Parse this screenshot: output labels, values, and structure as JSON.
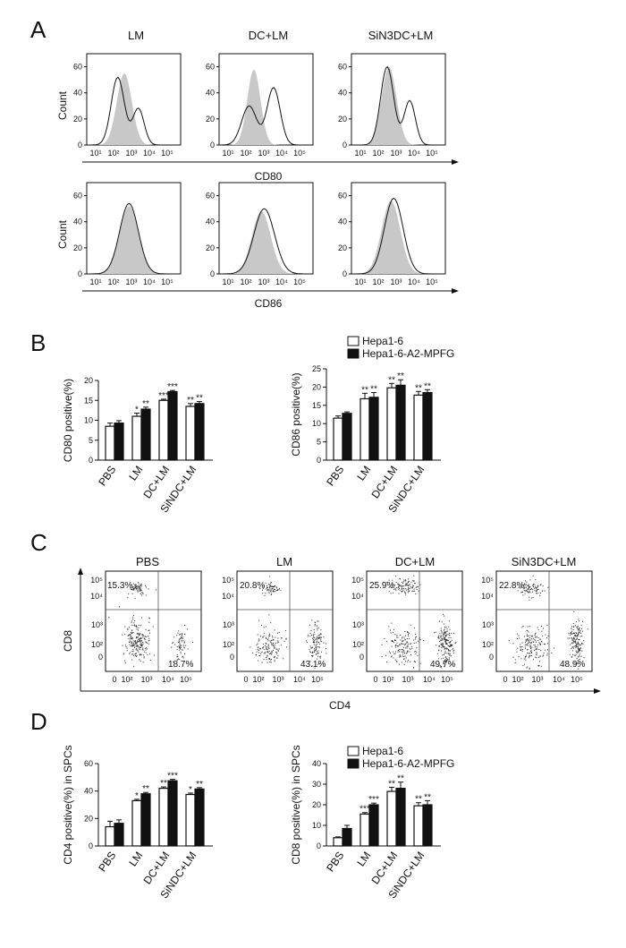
{
  "panels": {
    "A": {
      "letter": "A",
      "conditions": [
        "LM",
        "DC+LM",
        "SiN3DC+LM"
      ],
      "count_label": "Count",
      "y_ticks": [
        "0",
        "20",
        "40",
        "60"
      ],
      "x_ticks": [
        "10¹",
        "10²",
        "10³",
        "10⁴",
        "10⁵"
      ],
      "rows": [
        {
          "marker": "CD80"
        },
        {
          "marker": "CD86"
        }
      ]
    },
    "B": {
      "letter": "B",
      "legend": [
        "Hepa1-6",
        "Hepa1-6-A2-MPFG"
      ],
      "categories": [
        "PBS",
        "LM",
        "DC+LM",
        "SiNDC+LM"
      ]
    },
    "C": {
      "letter": "C",
      "conditions": [
        "PBS",
        "LM",
        "DC+LM",
        "SiN3DC+LM"
      ],
      "ylabel": "CD8",
      "xlabel": "CD4",
      "y_ticks": [
        "0",
        "10²",
        "10³",
        "10⁴",
        "10⁵"
      ],
      "x_ticks": [
        "0",
        "10²",
        "10³",
        "10⁴",
        "10⁵"
      ],
      "upper_left_pct": [
        "15.3%",
        "20.8%",
        "25.9%",
        "22.8%"
      ],
      "lower_right_pct": [
        "18.7%",
        "43.1%",
        "49.7%",
        "48.9%"
      ]
    },
    "D": {
      "letter": "D",
      "legend": [
        "Hepa1-6",
        "Hepa1-6-A2-MPFG"
      ],
      "categories": [
        "PBS",
        "LM",
        "DC+LM",
        "SiNDC+LM"
      ]
    }
  },
  "colors": {
    "filled": "#c8c8c8",
    "series1": "#ffffff",
    "series2": "#111111",
    "line": "#111111"
  },
  "chart_data": [
    {
      "type": "bar",
      "panel": "B-left",
      "ylabel": "CD80 positive(%)",
      "ylim": [
        0,
        20
      ],
      "yticks": [
        0,
        5,
        10,
        15,
        20
      ],
      "categories": [
        "PBS",
        "LM",
        "DC+LM",
        "SiNDC+LM"
      ],
      "series": [
        {
          "name": "Hepa1-6",
          "values": [
            8.5,
            11,
            15,
            13.5
          ],
          "errors": [
            0.8,
            0.8,
            0.3,
            0.7
          ],
          "stars": [
            "",
            "*",
            "***",
            "**"
          ]
        },
        {
          "name": "Hepa1-6-A2-MPFG",
          "values": [
            9.3,
            12.8,
            17.2,
            14.2
          ],
          "errors": [
            0.6,
            0.5,
            0.3,
            0.5
          ],
          "stars": [
            "",
            "**",
            "***",
            "**"
          ]
        }
      ]
    },
    {
      "type": "bar",
      "panel": "B-right",
      "ylabel": "CD86 positive(%)",
      "ylim": [
        0,
        25
      ],
      "yticks": [
        0,
        5,
        10,
        15,
        20,
        25
      ],
      "categories": [
        "PBS",
        "LM",
        "DC+LM",
        "SiNDC+LM"
      ],
      "series": [
        {
          "name": "Hepa1-6",
          "values": [
            11.5,
            16.8,
            19.8,
            17.8
          ],
          "errors": [
            0.6,
            1.5,
            1.2,
            1.0
          ],
          "stars": [
            "",
            "**",
            "**",
            "**"
          ]
        },
        {
          "name": "Hepa1-6-A2-MPFG",
          "values": [
            12.8,
            17.2,
            20.5,
            18.5
          ],
          "errors": [
            0.4,
            1.3,
            1.5,
            0.8
          ],
          "stars": [
            "",
            "**",
            "**",
            "**"
          ]
        }
      ]
    },
    {
      "type": "bar",
      "panel": "D-left",
      "ylabel": "CD4 positive(%) in SPCs",
      "ylim": [
        0,
        60
      ],
      "yticks": [
        0,
        20,
        40,
        60
      ],
      "categories": [
        "PBS",
        "LM",
        "DC+LM",
        "SiNDC+LM"
      ],
      "series": [
        {
          "name": "Hepa1-6",
          "values": [
            14,
            33,
            42,
            37.5
          ],
          "errors": [
            4,
            1,
            1,
            1
          ],
          "stars": [
            "",
            "*",
            "**",
            "*"
          ]
        },
        {
          "name": "Hepa1-6-A2-MPFG",
          "values": [
            16.5,
            38,
            47.5,
            41.5
          ],
          "errors": [
            2.5,
            1,
            1,
            1
          ],
          "stars": [
            "",
            "**",
            "***",
            "**"
          ]
        }
      ]
    },
    {
      "type": "bar",
      "panel": "D-right",
      "ylabel": "CD8 positive(%) in SPCs",
      "ylim": [
        0,
        40
      ],
      "yticks": [
        0,
        10,
        20,
        30,
        40
      ],
      "categories": [
        "PBS",
        "LM",
        "DC+LM",
        "SiNDC+LM"
      ],
      "series": [
        {
          "name": "Hepa1-6",
          "values": [
            4,
            15.5,
            26.5,
            19.5
          ],
          "errors": [
            0.4,
            0.7,
            2,
            1.5
          ],
          "stars": [
            "",
            "***",
            "**",
            "**"
          ]
        },
        {
          "name": "Hepa1-6-A2-MPFG",
          "values": [
            8.5,
            20,
            28,
            20
          ],
          "errors": [
            1.5,
            0.8,
            3,
            2
          ],
          "stars": [
            "",
            "***",
            "**",
            "**"
          ]
        }
      ]
    }
  ]
}
